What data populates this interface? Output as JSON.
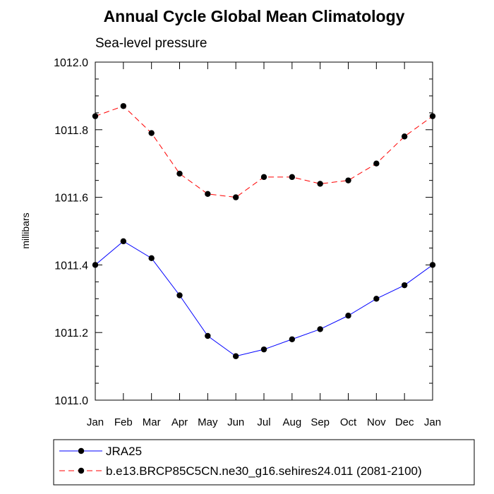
{
  "chart_data": {
    "type": "line",
    "title": "Annual Cycle Global Mean Climatology",
    "subtitle": "Sea-level pressure",
    "ylabel": "millibars",
    "xlabel": "",
    "categories": [
      "Jan",
      "Feb",
      "Mar",
      "Apr",
      "May",
      "Jun",
      "Jul",
      "Aug",
      "Sep",
      "Oct",
      "Nov",
      "Dec",
      "Jan"
    ],
    "ylim": [
      1011.0,
      1012.0
    ],
    "yticks": [
      "1011.0",
      "1011.2",
      "1011.4",
      "1011.6",
      "1011.8",
      "1012.0"
    ],
    "grid": false,
    "legend_position": "bottom",
    "series": [
      {
        "name": "JRA25",
        "color": "#0000ff",
        "line_style": "solid",
        "marker": "filled-circle",
        "values": [
          1011.4,
          1011.47,
          1011.42,
          1011.31,
          1011.19,
          1011.13,
          1011.15,
          1011.18,
          1011.21,
          1011.25,
          1011.3,
          1011.34,
          1011.4
        ]
      },
      {
        "name": "b.e13.BRCP85C5CN.ne30_g16.sehires24.011 (2081-2100)",
        "color": "#ff0000",
        "line_style": "dashed",
        "marker": "filled-circle",
        "values": [
          1011.84,
          1011.87,
          1011.79,
          1011.67,
          1011.61,
          1011.6,
          1011.66,
          1011.66,
          1011.64,
          1011.65,
          1011.7,
          1011.78,
          1011.84
        ]
      }
    ]
  }
}
